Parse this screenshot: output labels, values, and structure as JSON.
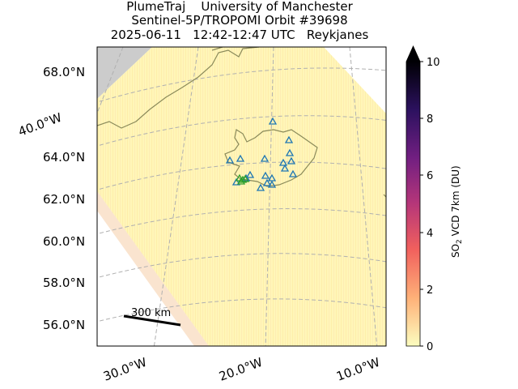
{
  "title": {
    "line1": "PlumeTraj    University of Manchester",
    "line2": "Sentinel-5P/TROPOMI Orbit #39698",
    "line3": "2025-06-11   12:42-12:47 UTC   Reykjanes"
  },
  "lat_labels": [
    "68.0°N",
    "64.0°N",
    "62.0°N",
    "60.0°N",
    "58.0°N",
    "56.0°N"
  ],
  "lon_labels_bottom": [
    "30.0°W",
    "20.0°W",
    "10.0°W"
  ],
  "lon_label_left": "40.0°W",
  "scale_bar": {
    "label": "300 km"
  },
  "colorbar": {
    "title_prefix": "SO",
    "title_sub": "2",
    "title_suffix": " VCD 7km (DU)",
    "ticks": [
      "0",
      "2",
      "4",
      "6",
      "8",
      "10"
    ],
    "extend": "max",
    "colors": [
      "#fcfdbf",
      "#feb078",
      "#f1605d",
      "#b63679",
      "#721f81",
      "#2c115f",
      "#000004"
    ]
  },
  "colors": {
    "swath_fill": "#fff4b0",
    "land_outside": "#cccccc",
    "coastline": "#8a8a5a",
    "volcano_marker": "#1f77b4",
    "active_marker": "#2ca02c",
    "gridline": "#b0b0b0"
  }
}
